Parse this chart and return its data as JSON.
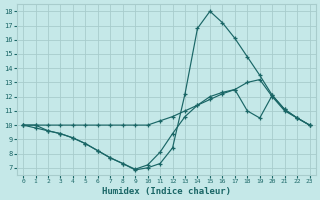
{
  "xlabel": "Humidex (Indice chaleur)",
  "background_color": "#c5e8e8",
  "grid_color": "#a8cccc",
  "line_color": "#1a6666",
  "xlim": [
    -0.5,
    23.5
  ],
  "ylim": [
    6.5,
    18.5
  ],
  "xticks": [
    0,
    1,
    2,
    3,
    4,
    5,
    6,
    7,
    8,
    9,
    10,
    11,
    12,
    13,
    14,
    15,
    16,
    17,
    18,
    19,
    20,
    21,
    22,
    23
  ],
  "yticks": [
    7,
    8,
    9,
    10,
    11,
    12,
    13,
    14,
    15,
    16,
    17,
    18
  ],
  "line1_x": [
    0,
    1,
    2,
    3,
    4,
    5,
    6,
    7,
    8,
    9,
    10,
    11,
    12,
    13,
    14,
    15,
    16,
    17,
    18,
    19,
    20,
    21,
    22,
    23
  ],
  "line1_y": [
    10.0,
    9.8,
    9.6,
    9.4,
    9.1,
    8.7,
    8.2,
    7.7,
    7.3,
    6.85,
    7.0,
    7.3,
    8.4,
    12.2,
    16.8,
    18.0,
    17.2,
    16.1,
    14.8,
    13.5,
    12.1,
    11.1,
    10.5,
    10.0
  ],
  "line2_x": [
    0,
    1,
    2,
    3,
    4,
    5,
    6,
    7,
    8,
    9,
    10,
    11,
    12,
    13,
    14,
    15,
    16,
    17,
    18,
    19,
    20,
    21,
    22,
    23
  ],
  "line2_y": [
    10.0,
    10.0,
    10.0,
    10.0,
    10.0,
    10.0,
    10.0,
    10.0,
    10.0,
    10.0,
    10.0,
    10.3,
    10.6,
    11.0,
    11.4,
    11.8,
    12.2,
    12.5,
    13.0,
    13.2,
    12.0,
    11.0,
    10.5,
    10.0
  ],
  "line3_x": [
    0,
    1,
    2,
    3,
    4,
    5,
    6,
    7,
    8,
    9,
    10,
    11,
    12,
    13,
    14,
    15,
    16,
    17,
    18,
    19,
    20,
    21,
    22,
    23
  ],
  "line3_y": [
    10.0,
    10.0,
    9.6,
    9.4,
    9.1,
    8.7,
    8.2,
    7.7,
    7.3,
    6.9,
    7.2,
    8.1,
    9.4,
    10.6,
    11.4,
    12.0,
    12.3,
    12.5,
    11.0,
    10.5,
    12.1,
    11.1,
    10.5,
    10.0
  ]
}
